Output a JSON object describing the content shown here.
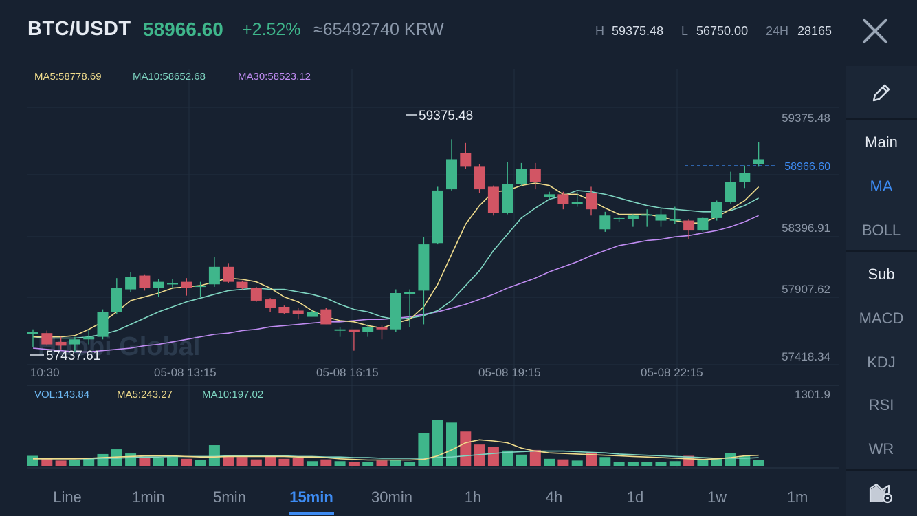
{
  "header": {
    "pair": "BTC/USDT",
    "price": "58966.60",
    "change": "+2.52%",
    "krw": "≈65492740 KRW",
    "stats": [
      {
        "key": "H",
        "value": "59375.48"
      },
      {
        "key": "L",
        "value": "56750.00"
      },
      {
        "key": "24H",
        "value": "28165"
      }
    ],
    "close_icon": "close-icon"
  },
  "chart": {
    "ma_legend": [
      {
        "label": "MA5:58778.69",
        "color": "#f0dc8c"
      },
      {
        "label": "MA10:58652.68",
        "color": "#7fd6c2"
      },
      {
        "label": "MA30:58523.12",
        "color": "#c08cf2"
      }
    ],
    "vol_legend": [
      {
        "label": "VOL:143.84",
        "color": "#6cb6f0"
      },
      {
        "label": "MA5:243.27",
        "color": "#f0dc8c"
      },
      {
        "label": "MA10:197.02",
        "color": "#7fd6c2"
      }
    ],
    "high_label": "59375.48",
    "low_label": "57437.61",
    "current_price_label": "58966.60",
    "watermark": "Huobi Global",
    "vol_max_label": "1301.9"
  },
  "chart_data": {
    "type": "candlestick",
    "y_ticks": [
      "59375.48",
      "58396.91",
      "57907.62",
      "57418.34"
    ],
    "x_ticks": [
      "10:30",
      "05-08 13:15",
      "05-08 16:15",
      "05-08 19:15",
      "05-08 22:15"
    ],
    "ylim": [
      57360,
      59560
    ],
    "vol_ylim": [
      0,
      1301.9
    ],
    "up_color": "#3fb68b",
    "down_color": "#d25564",
    "candles": [
      [
        57600,
        57580,
        57480,
        57620,
        180,
        "up"
      ],
      [
        57590,
        57500,
        57490,
        57610,
        130,
        "down"
      ],
      [
        57520,
        57490,
        57460,
        57560,
        100,
        "down"
      ],
      [
        57500,
        57540,
        57440,
        57560,
        110,
        "up"
      ],
      [
        57540,
        57560,
        57500,
        57620,
        140,
        "up"
      ],
      [
        57560,
        57760,
        57540,
        57780,
        210,
        "up"
      ],
      [
        57760,
        57950,
        57740,
        58030,
        290,
        "up"
      ],
      [
        57940,
        58040,
        57920,
        58080,
        220,
        "up"
      ],
      [
        58050,
        57950,
        57930,
        58060,
        170,
        "down"
      ],
      [
        57950,
        58000,
        57880,
        58020,
        150,
        "up"
      ],
      [
        57990,
        57990,
        57950,
        58020,
        160,
        "up"
      ],
      [
        58000,
        57950,
        57890,
        58030,
        130,
        "down"
      ],
      [
        57970,
        57970,
        57880,
        58000,
        110,
        "up"
      ],
      [
        57980,
        58120,
        57960,
        58200,
        360,
        "up"
      ],
      [
        58120,
        58000,
        57990,
        58150,
        170,
        "down"
      ],
      [
        58000,
        57950,
        57940,
        58010,
        160,
        "down"
      ],
      [
        57950,
        57850,
        57840,
        57960,
        120,
        "down"
      ],
      [
        57860,
        57790,
        57760,
        57870,
        190,
        "down"
      ],
      [
        57800,
        57750,
        57740,
        57810,
        130,
        "down"
      ],
      [
        57770,
        57740,
        57700,
        57790,
        140,
        "down"
      ],
      [
        57760,
        57720,
        57720,
        57770,
        90,
        "up"
      ],
      [
        57780,
        57660,
        57660,
        57790,
        120,
        "down"
      ],
      [
        57620,
        57620,
        57560,
        57640,
        90,
        "up"
      ],
      [
        57620,
        57600,
        57450,
        57610,
        80,
        "down"
      ],
      [
        57600,
        57640,
        57560,
        57660,
        70,
        "up"
      ],
      [
        57640,
        57620,
        57540,
        57650,
        100,
        "down"
      ],
      [
        57620,
        57910,
        57600,
        57940,
        110,
        "up"
      ],
      [
        57900,
        57920,
        57640,
        57940,
        80,
        "up"
      ],
      [
        57930,
        58300,
        57660,
        58360,
        560,
        "up"
      ],
      [
        58310,
        58730,
        58300,
        58760,
        780,
        "up"
      ],
      [
        58740,
        58980,
        58730,
        59140,
        740,
        "up"
      ],
      [
        59030,
        58920,
        58900,
        59110,
        590,
        "down"
      ],
      [
        58920,
        58740,
        58710,
        58940,
        370,
        "down"
      ],
      [
        58760,
        58550,
        58530,
        58770,
        330,
        "down"
      ],
      [
        58550,
        58780,
        58540,
        58960,
        270,
        "up"
      ],
      [
        58780,
        58900,
        58770,
        58950,
        200,
        "up"
      ],
      [
        58900,
        58800,
        58740,
        58950,
        280,
        "down"
      ],
      [
        58680,
        58700,
        58660,
        58720,
        130,
        "up"
      ],
      [
        58700,
        58620,
        58580,
        58720,
        120,
        "down"
      ],
      [
        58620,
        58640,
        58600,
        58720,
        100,
        "up"
      ],
      [
        58710,
        58580,
        58530,
        58760,
        230,
        "down"
      ],
      [
        58420,
        58530,
        58400,
        58560,
        160,
        "up"
      ],
      [
        58500,
        58510,
        58480,
        58520,
        70,
        "up"
      ],
      [
        58500,
        58530,
        58440,
        58540,
        80,
        "up"
      ],
      [
        58530,
        58540,
        58440,
        58580,
        70,
        "up"
      ],
      [
        58540,
        58490,
        58440,
        58590,
        80,
        "up"
      ],
      [
        58500,
        58500,
        58460,
        58600,
        90,
        "up"
      ],
      [
        58490,
        58410,
        58340,
        58500,
        180,
        "down"
      ],
      [
        58410,
        58510,
        58400,
        58520,
        110,
        "up"
      ],
      [
        58510,
        58640,
        58490,
        58650,
        150,
        "up"
      ],
      [
        58640,
        58800,
        58620,
        58880,
        230,
        "up"
      ],
      [
        58800,
        58870,
        58750,
        58930,
        180,
        "up"
      ],
      [
        58940,
        58980,
        58920,
        59120,
        110,
        "up"
      ]
    ],
    "ma5": [
      57560,
      57560,
      57560,
      57570,
      57620,
      57680,
      57760,
      57850,
      57880,
      57910,
      57950,
      57960,
      57970,
      58000,
      58030,
      58020,
      58000,
      57950,
      57880,
      57840,
      57770,
      57720,
      57690,
      57680,
      57650,
      57630,
      57670,
      57700,
      57800,
      57980,
      58220,
      58460,
      58610,
      58720,
      58730,
      58770,
      58790,
      58770,
      58700,
      58700,
      58650,
      58590,
      58540,
      58540,
      58540,
      58520,
      58490,
      58470,
      58470,
      58520,
      58580,
      58650,
      58760
    ],
    "ma10": [
      57560,
      57550,
      57550,
      57550,
      57560,
      57580,
      57610,
      57660,
      57710,
      57760,
      57800,
      57840,
      57870,
      57900,
      57930,
      57940,
      57950,
      57940,
      57940,
      57920,
      57900,
      57870,
      57820,
      57780,
      57760,
      57720,
      57700,
      57710,
      57730,
      57770,
      57850,
      57970,
      58090,
      58250,
      58380,
      58510,
      58590,
      58660,
      58690,
      58730,
      58720,
      58700,
      58670,
      58640,
      58610,
      58590,
      58580,
      58570,
      58560,
      58560,
      58570,
      58610,
      58670
    ],
    "ma30": [
      57470,
      57460,
      57450,
      57440,
      57440,
      57450,
      57460,
      57470,
      57490,
      57500,
      57520,
      57540,
      57560,
      57580,
      57590,
      57610,
      57620,
      57640,
      57650,
      57660,
      57670,
      57680,
      57680,
      57690,
      57700,
      57700,
      57710,
      57720,
      57740,
      57760,
      57790,
      57820,
      57860,
      57900,
      57950,
      57990,
      58030,
      58080,
      58120,
      58160,
      58210,
      58250,
      58290,
      58310,
      58330,
      58340,
      58360,
      58370,
      58390,
      58410,
      58440,
      58480,
      58530
    ],
    "vol_ma5": [
      130,
      130,
      130,
      130,
      140,
      150,
      160,
      170,
      180,
      180,
      180,
      170,
      160,
      160,
      170,
      170,
      170,
      170,
      170,
      160,
      160,
      150,
      130,
      120,
      110,
      110,
      110,
      110,
      120,
      180,
      280,
      400,
      450,
      430,
      400,
      310,
      260,
      230,
      220,
      210,
      200,
      190,
      180,
      170,
      160,
      150,
      140,
      130,
      120,
      130,
      150,
      180,
      190
    ],
    "vol_ma10": [
      130,
      130,
      130,
      130,
      130,
      140,
      140,
      150,
      160,
      160,
      170,
      170,
      170,
      170,
      180,
      180,
      180,
      180,
      180,
      170,
      170,
      160,
      160,
      150,
      150,
      140,
      140,
      140,
      140,
      150,
      160,
      180,
      200,
      220,
      240,
      250,
      260,
      260,
      260,
      250,
      240,
      230,
      210,
      200,
      190,
      180,
      170,
      160,
      150,
      140,
      140,
      140,
      150
    ]
  },
  "right_panel": {
    "edit_icon": "pencil-icon",
    "main_label": "Main",
    "ma_label": "MA",
    "boll_label": "BOLL",
    "sub_label": "Sub",
    "macd_label": "MACD",
    "kdj_label": "KDJ",
    "rsi_label": "RSI",
    "wr_label": "WR",
    "settings_icon": "chart-settings-icon"
  },
  "timeframes": [
    "Line",
    "1min",
    "5min",
    "15min",
    "30min",
    "1h",
    "4h",
    "1d",
    "1w",
    "1m"
  ],
  "active_timeframe": "15min"
}
